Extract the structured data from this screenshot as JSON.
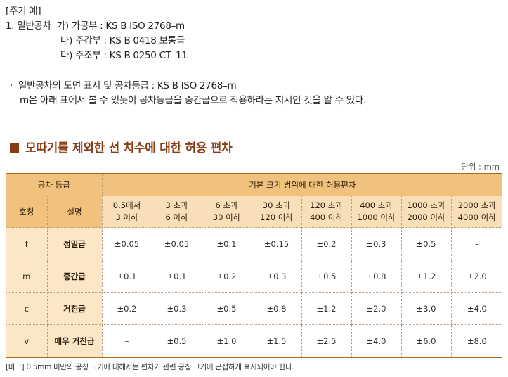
{
  "notes": {
    "title": "[주기 예]",
    "line1_prefix": "1. 일반공차",
    "line1_item": "가) 가공부 : KS B ISO 2768–m",
    "line2_item": "나) 주강부 : KS B 0418 보통급",
    "line3_item": "다) 주조부 : KS B 0250 CT–11",
    "bullet_marker": "·",
    "bullet_line1": "일반공차의 도면 표시 및 공차등급 : KS B ISO 2768–m",
    "bullet_line2": "m은 아래 표에서 볼 수 있듯이 공차등급을 중간급으로 적용하라는 지시인 것을 알 수 있다."
  },
  "section_title": "모따기를 제외한 선 치수에 대한 허용 편차",
  "unit_label": "단위 : mm",
  "table": {
    "class_header": "공차 등급",
    "range_header": "기본 크기 범위에 대한 허용편차",
    "code_header": "호칭",
    "desc_header": "설명",
    "ranges": [
      {
        "line1": "0.5에서",
        "line2": "3 이하"
      },
      {
        "line1": "3 초과",
        "line2": "6 이하"
      },
      {
        "line1": "6 초과",
        "line2": "30 이하"
      },
      {
        "line1": "30 초과",
        "line2": "120 이하"
      },
      {
        "line1": "120 초과",
        "line2": "400 이하"
      },
      {
        "line1": "400 초과",
        "line2": "1000 이하"
      },
      {
        "line1": "1000 초과",
        "line2": "2000 이하"
      },
      {
        "line1": "2000 초과",
        "line2": "4000 이하"
      }
    ],
    "rows": [
      {
        "code": "f",
        "desc": "정밀급",
        "values": [
          "±0.05",
          "±0.05",
          "±0.1",
          "±0.15",
          "±0.2",
          "±0.3",
          "±0.5",
          "–"
        ]
      },
      {
        "code": "m",
        "desc": "중간급",
        "values": [
          "±0.1",
          "±0.1",
          "±0.2",
          "±0.3",
          "±0.5",
          "±0.8",
          "±1.2",
          "±2.0"
        ]
      },
      {
        "code": "c",
        "desc": "거친급",
        "values": [
          "±0.2",
          "±0.3",
          "±0.5",
          "±0.8",
          "±1.2",
          "±2.0",
          "±3.0",
          "±4.0"
        ]
      },
      {
        "code": "v",
        "desc": "매우 거친급",
        "values": [
          "–",
          "±0.5",
          "±1.0",
          "±1.5",
          "±2.5",
          "±4.0",
          "±6.0",
          "±8.0"
        ]
      }
    ]
  },
  "footnote": "[비고] 0.5mm 미만의 공칭 크기에 대해서는 편차가 관련 공칭 크기에 근접하게 표시되어야 한다.",
  "colors": {
    "accent": "#8a3b12",
    "header_dark": "#f0c27d",
    "header_light": "#f9dfb7",
    "row_label_bg": "#fbe6c6",
    "table_border": "#b46a1e"
  }
}
